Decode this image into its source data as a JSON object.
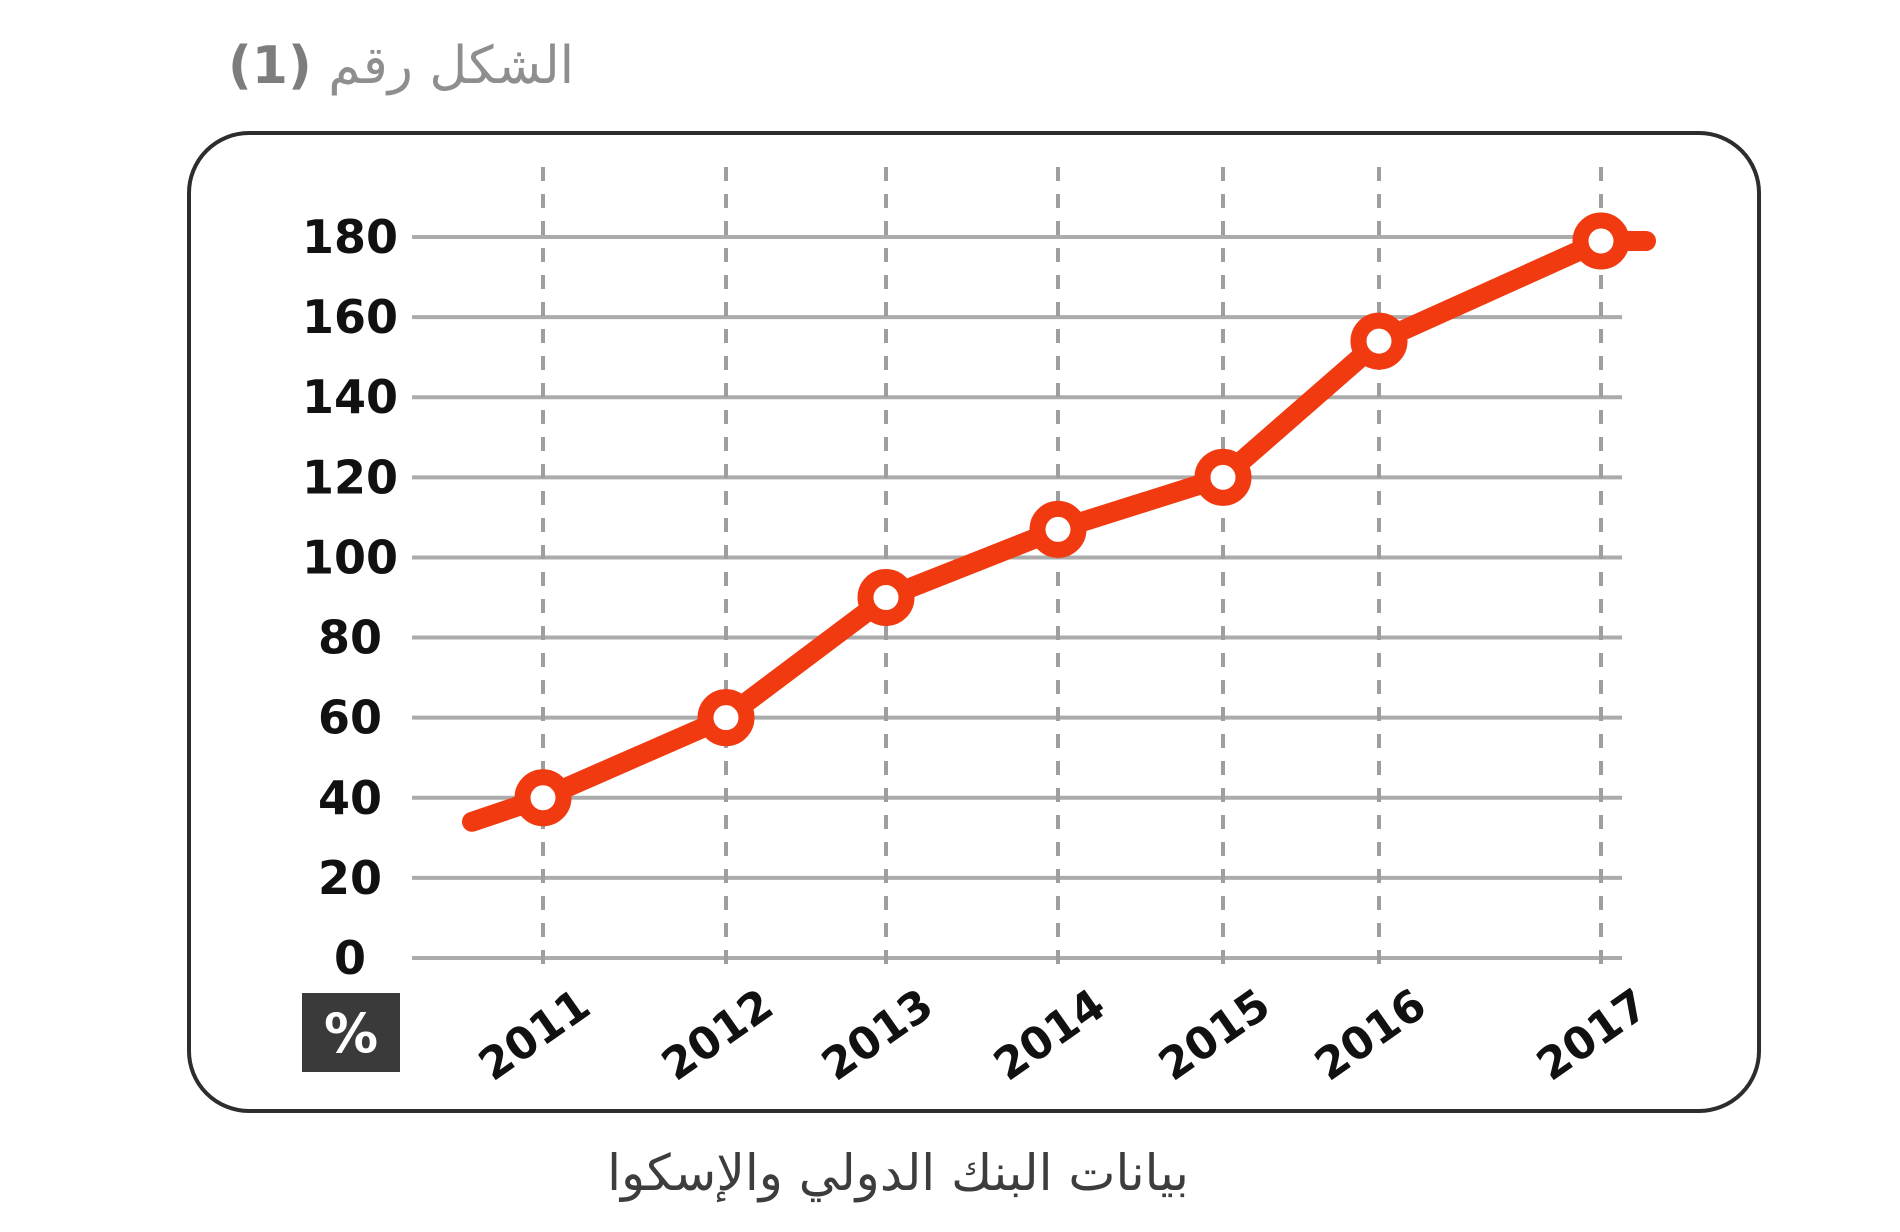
{
  "header": {
    "figure_label": "الشكل رقم",
    "figure_number": "(1)"
  },
  "caption": "بيانات البنك الدولي والإسكوا",
  "unit_badge": "%",
  "colors": {
    "line": "#f13a10",
    "grid_solid": "#ababab",
    "grid_dashed": "#9e9e9e",
    "axis_text": "#111111",
    "title_text": "#8e8e8e",
    "caption_text": "#3d3d3d",
    "badge_bg": "#3a3a3a",
    "badge_text": "#ffffff",
    "card_border": "#2d2d2d",
    "background": "#ffffff"
  },
  "chart_data": {
    "type": "line",
    "title": "",
    "categories": [
      "2011",
      "2012",
      "2013",
      "2014",
      "2015",
      "2016",
      "2017"
    ],
    "values": [
      40,
      60,
      90,
      107,
      120,
      154,
      179
    ],
    "lead_in_value": 34,
    "lead_out_value": 179,
    "ylabel": "%",
    "xlabel": "",
    "ylim": [
      0,
      180
    ],
    "ytick_step": 20,
    "ytick_labels": [
      "0",
      "20",
      "40",
      "60",
      "80",
      "100",
      "120",
      "140",
      "160",
      "180"
    ],
    "grid": "horizontal-solid, vertical-dashed",
    "legend": "none",
    "marker": "donut",
    "line_color": "#f13a10"
  }
}
